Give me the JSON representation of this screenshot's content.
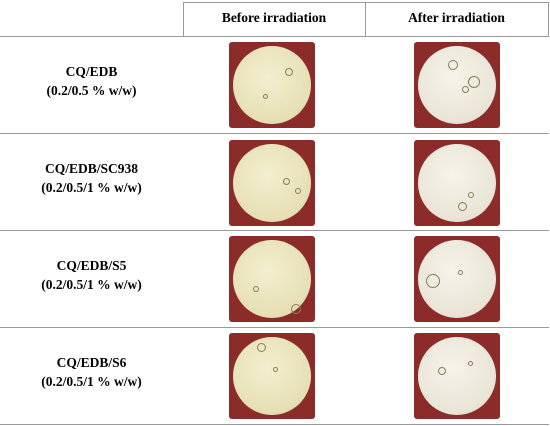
{
  "header": {
    "columns": [
      "Before irradiation",
      "After irradiation"
    ]
  },
  "rows": [
    {
      "label": [
        "CQ/EDB",
        "(0.2/0.5 % w/w)"
      ]
    },
    {
      "label": [
        "CQ/EDB/SC938",
        "(0.2/0.5/1 % w/w)"
      ]
    },
    {
      "label": [
        "CQ/EDB/S5",
        "(0.2/0.5/1 % w/w)"
      ]
    },
    {
      "label": [
        "CQ/EDB/S6",
        "(0.2/0.5/1 % w/w)"
      ]
    }
  ]
}
